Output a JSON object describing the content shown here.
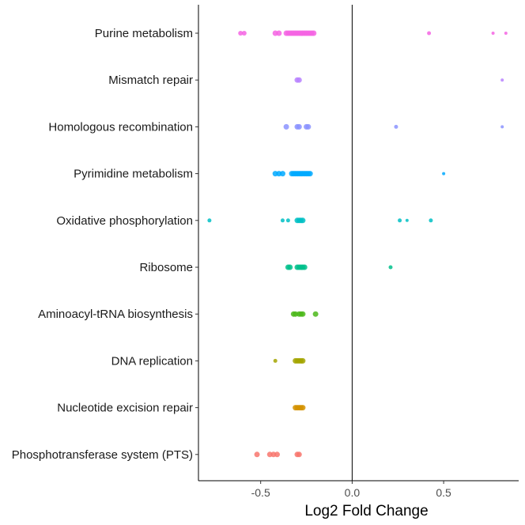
{
  "chart_data": {
    "type": "scatter",
    "title": "",
    "xlabel": "Log2 Fold Change",
    "ylabel": "",
    "xlim": [
      -0.84,
      0.91
    ],
    "xticks": [
      -0.5,
      0.0,
      0.5
    ],
    "xtick_labels": [
      "-0.5",
      "0.0",
      "0.5"
    ],
    "zero_line": 0,
    "grid": false,
    "legend": "none",
    "categories": [
      "Purine metabolism",
      "Mismatch repair",
      "Homologous recombination",
      "Pyrimidine metabolism",
      "Oxidative phosphorylation",
      "Ribosome",
      "Aminoacyl-tRNA biosynthesis",
      "DNA replication",
      "Nucleotide excision repair",
      "Phosphotransferase system (PTS)"
    ],
    "series": [
      {
        "category": "Purine metabolism",
        "color": "#F564E3",
        "points": [
          [
            -0.61,
            4
          ],
          [
            -0.59,
            4
          ],
          [
            -0.42,
            5
          ],
          [
            -0.4,
            5
          ],
          [
            -0.36,
            5
          ],
          [
            -0.35,
            5
          ],
          [
            -0.34,
            5
          ],
          [
            -0.33,
            5
          ],
          [
            -0.32,
            5
          ],
          [
            -0.31,
            5
          ],
          [
            -0.3,
            5
          ],
          [
            -0.29,
            5
          ],
          [
            -0.28,
            5
          ],
          [
            -0.27,
            5
          ],
          [
            -0.26,
            5
          ],
          [
            -0.25,
            5
          ],
          [
            -0.24,
            5
          ],
          [
            -0.23,
            5
          ],
          [
            -0.22,
            5
          ],
          [
            -0.21,
            5
          ],
          [
            0.42,
            3
          ],
          [
            0.77,
            2
          ],
          [
            0.84,
            2
          ]
        ]
      },
      {
        "category": "Mismatch repair",
        "color": "#B983FF",
        "points": [
          [
            -0.3,
            5
          ],
          [
            -0.29,
            5
          ],
          [
            0.82,
            2
          ]
        ]
      },
      {
        "category": "Homologous recombination",
        "color": "#8B93FF",
        "points": [
          [
            -0.36,
            5
          ],
          [
            -0.3,
            5
          ],
          [
            -0.29,
            5
          ],
          [
            -0.25,
            5
          ],
          [
            -0.24,
            5
          ],
          [
            0.24,
            3
          ],
          [
            0.82,
            2
          ]
        ]
      },
      {
        "category": "Pyrimidine metabolism",
        "color": "#00A9FF",
        "points": [
          [
            -0.42,
            5
          ],
          [
            -0.4,
            5
          ],
          [
            -0.38,
            5
          ],
          [
            -0.33,
            5
          ],
          [
            -0.32,
            5
          ],
          [
            -0.31,
            5
          ],
          [
            -0.3,
            5
          ],
          [
            -0.29,
            5
          ],
          [
            -0.28,
            5
          ],
          [
            -0.27,
            5
          ],
          [
            -0.26,
            5
          ],
          [
            -0.25,
            5
          ],
          [
            -0.24,
            5
          ],
          [
            -0.23,
            5
          ],
          [
            0.5,
            2
          ]
        ]
      },
      {
        "category": "Oxidative phosphorylation",
        "color": "#00BFC4",
        "points": [
          [
            -0.78,
            3
          ],
          [
            -0.38,
            3
          ],
          [
            -0.35,
            3
          ],
          [
            -0.3,
            5
          ],
          [
            -0.29,
            5
          ],
          [
            -0.28,
            5
          ],
          [
            -0.27,
            5
          ],
          [
            0.26,
            3
          ],
          [
            0.3,
            2
          ],
          [
            0.43,
            3
          ]
        ]
      },
      {
        "category": "Ribosome",
        "color": "#00C08B",
        "points": [
          [
            -0.35,
            5
          ],
          [
            -0.34,
            5
          ],
          [
            -0.3,
            5
          ],
          [
            -0.29,
            5
          ],
          [
            -0.28,
            5
          ],
          [
            -0.27,
            5
          ],
          [
            -0.26,
            5
          ],
          [
            0.21,
            3
          ]
        ]
      },
      {
        "category": "Aminoacyl-tRNA biosynthesis",
        "color": "#4CB81A",
        "points": [
          [
            -0.32,
            5
          ],
          [
            -0.31,
            5
          ],
          [
            -0.29,
            5
          ],
          [
            -0.28,
            5
          ],
          [
            -0.27,
            5
          ],
          [
            -0.2,
            5
          ]
        ]
      },
      {
        "category": "DNA replication",
        "color": "#A3A500",
        "points": [
          [
            -0.42,
            3
          ],
          [
            -0.31,
            5
          ],
          [
            -0.3,
            5
          ],
          [
            -0.29,
            5
          ],
          [
            -0.28,
            5
          ],
          [
            -0.27,
            5
          ]
        ]
      },
      {
        "category": "Nucleotide excision repair",
        "color": "#D39200",
        "points": [
          [
            -0.31,
            5
          ],
          [
            -0.3,
            5
          ],
          [
            -0.29,
            5
          ],
          [
            -0.28,
            5
          ],
          [
            -0.27,
            5
          ]
        ]
      },
      {
        "category": "Phosphotransferase system (PTS)",
        "color": "#F8766D",
        "points": [
          [
            -0.52,
            5
          ],
          [
            -0.45,
            5
          ],
          [
            -0.43,
            5
          ],
          [
            -0.41,
            5
          ],
          [
            -0.3,
            5
          ],
          [
            -0.29,
            5
          ]
        ]
      }
    ]
  }
}
